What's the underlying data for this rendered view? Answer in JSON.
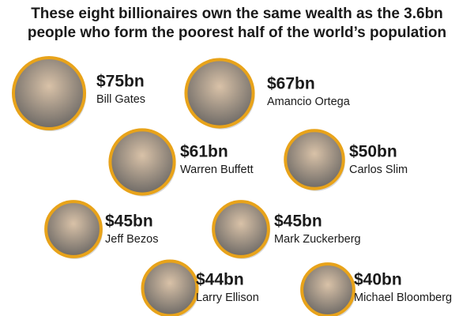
{
  "chart_data": {
    "type": "bubble",
    "title": [
      "These eight billionaires own the same wealth as the 3.6bn",
      "people who form the poorest half of the world’s population"
    ],
    "categories": [
      "Bill Gates",
      "Amancio Ortega",
      "Warren Buffett",
      "Carlos Slim",
      "Jeff Bezos",
      "Mark Zuckerberg",
      "Larry Ellison",
      "Michael Bloomberg"
    ],
    "values": [
      75,
      67,
      61,
      50,
      45,
      45,
      44,
      40
    ],
    "value_labels": [
      "$75bn",
      "$67bn",
      "$61bn",
      "$50bn",
      "$45bn",
      "$45bn",
      "$44bn",
      "$40bn"
    ],
    "color": "#e8a31a"
  }
}
